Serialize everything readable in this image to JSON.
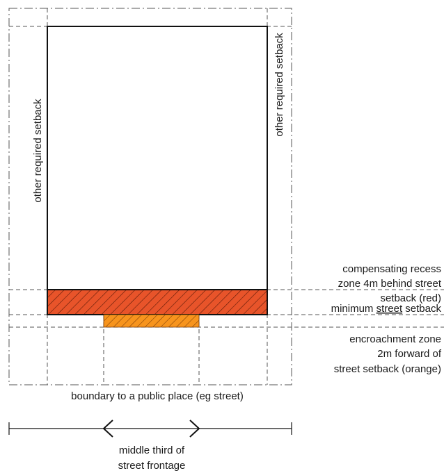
{
  "labels": {
    "setback_left": "other required setback",
    "setback_right": "other required setback",
    "recess_line1": "compensating recess",
    "recess_line2": "zone 4m behind street",
    "recess_line3": "setback (red)",
    "min_prefix": "minimum ",
    "min_underlined": "street",
    "min_suffix": " setback",
    "encroach_line1": "encroachment zone",
    "encroach_line2": "2m forward of",
    "encroach_line3": "street setback (orange)",
    "boundary": "boundary to a public place (eg street)",
    "middle_line1": "middle third of",
    "middle_line2": "street frontage"
  },
  "colors": {
    "recess_zone": "#e8542a",
    "encroachment_zone": "#f7941d",
    "hatch": "#5a1a08",
    "line": "#111111"
  }
}
